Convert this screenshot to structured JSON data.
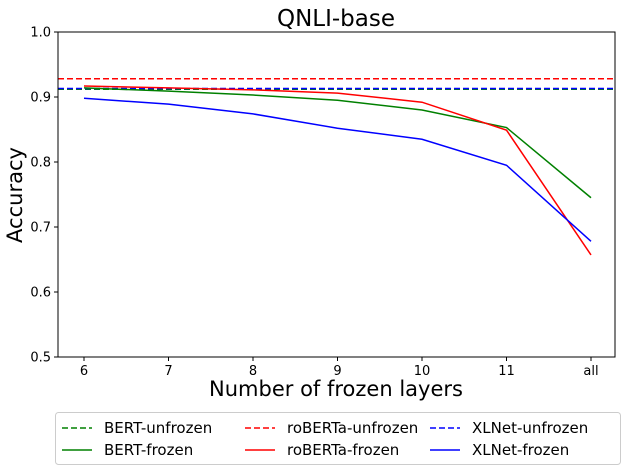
{
  "chart_data": {
    "type": "line",
    "title": "QNLI-base",
    "xlabel": "Number of frozen layers",
    "ylabel": "Accuracy",
    "categories": [
      "6",
      "7",
      "8",
      "9",
      "10",
      "11",
      "all"
    ],
    "ylim": [
      0.5,
      1.0
    ],
    "yticks": [
      "0.5",
      "0.6",
      "0.7",
      "0.8",
      "0.9",
      "1.0"
    ],
    "grid": false,
    "legend_position": "bottom",
    "series": [
      {
        "name": "BERT-unfrozen",
        "style": "dashed",
        "color": "#008000",
        "values": [
          0.912,
          0.912,
          0.912,
          0.912,
          0.912,
          0.912,
          0.912
        ]
      },
      {
        "name": "roBERTa-unfrozen",
        "style": "dashed",
        "color": "#ff0000",
        "values": [
          0.928,
          0.928,
          0.928,
          0.928,
          0.928,
          0.928,
          0.928
        ]
      },
      {
        "name": "XLNet-unfrozen",
        "style": "dashed",
        "color": "#0000ff",
        "values": [
          0.913,
          0.913,
          0.913,
          0.913,
          0.913,
          0.913,
          0.913
        ]
      },
      {
        "name": "BERT-frozen",
        "style": "solid",
        "color": "#008000",
        "values": [
          0.914,
          0.909,
          0.903,
          0.895,
          0.88,
          0.853,
          0.745
        ]
      },
      {
        "name": "roBERTa-frozen",
        "style": "solid",
        "color": "#ff0000",
        "values": [
          0.917,
          0.914,
          0.911,
          0.906,
          0.892,
          0.849,
          0.657
        ]
      },
      {
        "name": "XLNet-frozen",
        "style": "solid",
        "color": "#0000ff",
        "values": [
          0.898,
          0.889,
          0.874,
          0.852,
          0.835,
          0.795,
          0.678
        ]
      }
    ],
    "legend_order": [
      "BERT-unfrozen",
      "BERT-frozen",
      "roBERTa-unfrozen",
      "roBERTa-frozen",
      "XLNet-unfrozen",
      "XLNet-frozen"
    ]
  }
}
